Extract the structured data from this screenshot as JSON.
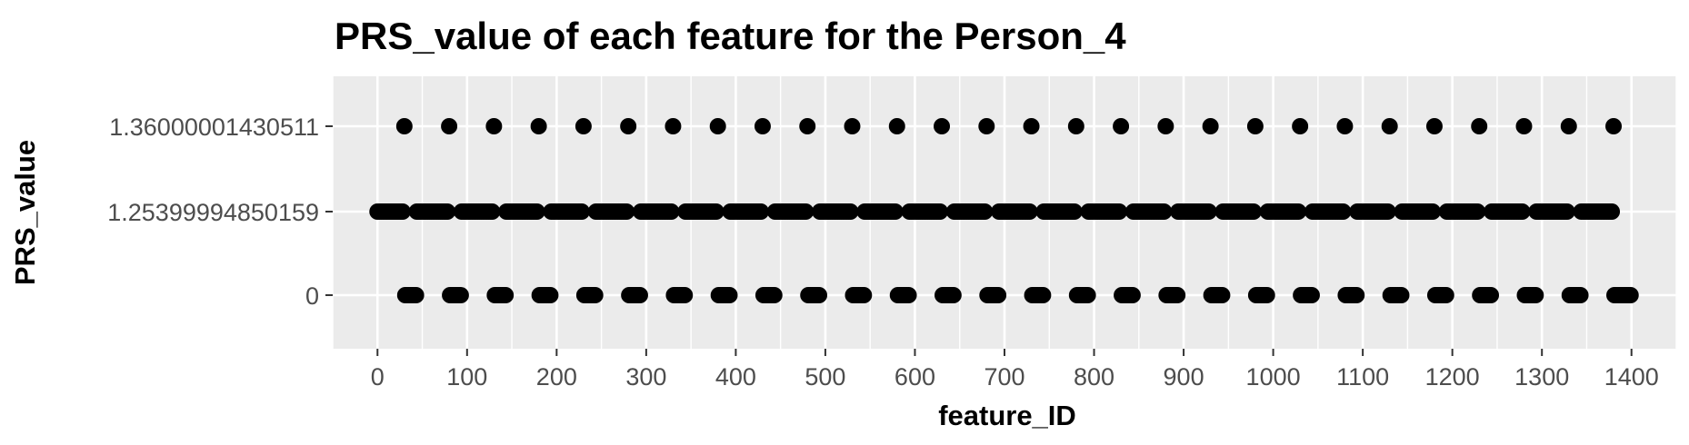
{
  "chart_data": {
    "type": "scatter",
    "title": "PRS_value of each feature for the Person_4",
    "xlabel": "feature_ID",
    "ylabel": "PRS_value",
    "xlim": [
      -50,
      1450
    ],
    "x_ticks": [
      0,
      100,
      200,
      300,
      400,
      500,
      600,
      700,
      800,
      900,
      1000,
      1100,
      1200,
      1300,
      1400
    ],
    "x_tick_labels": [
      "0",
      "100",
      "200",
      "300",
      "400",
      "500",
      "600",
      "700",
      "800",
      "900",
      "1000",
      "1100",
      "1200",
      "1300",
      "1400"
    ],
    "y_categories": [
      "0",
      "1.25399994850159",
      "1.36000001430511"
    ],
    "grid": true,
    "panel_background": "#ebebeb",
    "grid_color": "#ffffff",
    "point_color": "#000000",
    "series": [
      {
        "y": "1.36000001430511",
        "x": [
          30,
          80,
          130,
          180,
          230,
          280,
          330,
          380,
          430,
          480,
          530,
          580,
          630,
          680,
          730,
          780,
          830,
          880,
          930,
          980,
          1030,
          1080,
          1130,
          1180,
          1230,
          1280,
          1330,
          1380
        ]
      },
      {
        "y": "1.25399994850159",
        "x_ranges": [
          [
            0,
            29
          ],
          [
            44,
            79
          ],
          [
            94,
            129
          ],
          [
            144,
            179
          ],
          [
            194,
            229
          ],
          [
            244,
            279
          ],
          [
            294,
            329
          ],
          [
            344,
            379
          ],
          [
            394,
            429
          ],
          [
            444,
            479
          ],
          [
            494,
            529
          ],
          [
            544,
            579
          ],
          [
            594,
            629
          ],
          [
            644,
            679
          ],
          [
            694,
            729
          ],
          [
            744,
            779
          ],
          [
            794,
            829
          ],
          [
            844,
            879
          ],
          [
            894,
            929
          ],
          [
            944,
            979
          ],
          [
            994,
            1029
          ],
          [
            1044,
            1079
          ],
          [
            1094,
            1129
          ],
          [
            1144,
            1179
          ],
          [
            1194,
            1229
          ],
          [
            1244,
            1279
          ],
          [
            1294,
            1329
          ],
          [
            1344,
            1379
          ]
        ]
      },
      {
        "y": "0",
        "x_ranges": [
          [
            31,
            43
          ],
          [
            81,
            93
          ],
          [
            131,
            143
          ],
          [
            181,
            193
          ],
          [
            231,
            243
          ],
          [
            281,
            293
          ],
          [
            331,
            343
          ],
          [
            381,
            393
          ],
          [
            431,
            443
          ],
          [
            481,
            493
          ],
          [
            531,
            543
          ],
          [
            581,
            593
          ],
          [
            631,
            643
          ],
          [
            681,
            693
          ],
          [
            731,
            743
          ],
          [
            781,
            793
          ],
          [
            831,
            843
          ],
          [
            881,
            893
          ],
          [
            931,
            943
          ],
          [
            981,
            993
          ],
          [
            1031,
            1043
          ],
          [
            1081,
            1093
          ],
          [
            1131,
            1143
          ],
          [
            1181,
            1193
          ],
          [
            1231,
            1243
          ],
          [
            1281,
            1293
          ],
          [
            1331,
            1343
          ],
          [
            1381,
            1400
          ]
        ]
      }
    ]
  }
}
